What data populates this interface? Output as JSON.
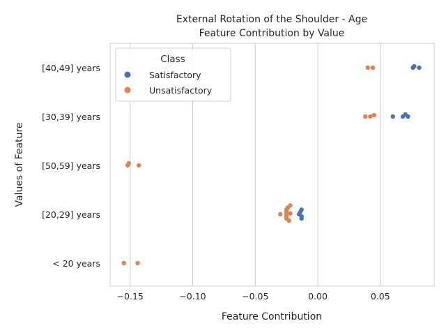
{
  "chart_data": {
    "type": "scatter",
    "title": "External Rotation of the Shoulder - Age",
    "subtitle": "Feature Contribution by Value",
    "xlabel": "Feature Contribution",
    "ylabel": "Values of Feature",
    "xlim": [
      -0.166,
      0.093
    ],
    "xticks": [
      -0.15,
      -0.1,
      -0.05,
      0.0,
      0.05
    ],
    "xtick_labels": [
      "−0.15",
      "−0.10",
      "−0.05",
      "0.00",
      "0.05"
    ],
    "categories": [
      "[40,49] years",
      "[30,39] years",
      "[50,59] years",
      "[20,29] years",
      "< 20 years"
    ],
    "grid": "vertical",
    "legend": {
      "title": "Class",
      "placement": "top-left",
      "entries": [
        {
          "name": "Satisfactory",
          "color": "#4c72b0"
        },
        {
          "name": "Unsatisfactory",
          "color": "#dd8452"
        }
      ]
    },
    "series": [
      {
        "name": "Satisfactory",
        "color": "#4c72b0",
        "points": [
          {
            "category": "[40,49] years",
            "x": 0.077,
            "jitter": -0.06
          },
          {
            "category": "[40,49] years",
            "x": 0.076,
            "jitter": 0.0
          },
          {
            "category": "[40,49] years",
            "x": 0.081,
            "jitter": 0.0
          },
          {
            "category": "[30,39] years",
            "x": 0.07,
            "jitter": -0.09
          },
          {
            "category": "[30,39] years",
            "x": 0.06,
            "jitter": 0.0
          },
          {
            "category": "[30,39] years",
            "x": 0.068,
            "jitter": 0.0
          },
          {
            "category": "[30,39] years",
            "x": 0.072,
            "jitter": 0.0
          },
          {
            "category": "[20,29] years",
            "x": -0.013,
            "jitter": -0.19
          },
          {
            "category": "[20,29] years",
            "x": -0.014,
            "jitter": -0.1
          },
          {
            "category": "[20,29] years",
            "x": -0.015,
            "jitter": 0.0
          },
          {
            "category": "[20,29] years",
            "x": -0.013,
            "jitter": 0.09
          },
          {
            "category": "[20,29] years",
            "x": -0.013,
            "jitter": 0.18
          }
        ]
      },
      {
        "name": "Unsatisfactory",
        "color": "#dd8452",
        "points": [
          {
            "category": "[40,49] years",
            "x": 0.04,
            "jitter": 0.0
          },
          {
            "category": "[40,49] years",
            "x": 0.044,
            "jitter": 0.0
          },
          {
            "category": "[30,39] years",
            "x": 0.045,
            "jitter": -0.06
          },
          {
            "category": "[30,39] years",
            "x": 0.038,
            "jitter": 0.0
          },
          {
            "category": "[30,39] years",
            "x": 0.042,
            "jitter": 0.0
          },
          {
            "category": "[50,59] years",
            "x": -0.151,
            "jitter": -0.09
          },
          {
            "category": "[50,59] years",
            "x": -0.152,
            "jitter": 0.0
          },
          {
            "category": "[50,59] years",
            "x": -0.143,
            "jitter": 0.0
          },
          {
            "category": "[20,29] years",
            "x": -0.022,
            "jitter": -0.37
          },
          {
            "category": "[20,29] years",
            "x": -0.024,
            "jitter": -0.28
          },
          {
            "category": "[20,29] years",
            "x": -0.025,
            "jitter": -0.19
          },
          {
            "category": "[20,29] years",
            "x": -0.025,
            "jitter": -0.1
          },
          {
            "category": "[20,29] years",
            "x": -0.022,
            "jitter": -0.03
          },
          {
            "category": "[20,29] years",
            "x": -0.03,
            "jitter": 0.0
          },
          {
            "category": "[20,29] years",
            "x": -0.025,
            "jitter": 0.0
          },
          {
            "category": "[20,29] years",
            "x": -0.025,
            "jitter": 0.09
          },
          {
            "category": "[20,29] years",
            "x": -0.025,
            "jitter": 0.18
          },
          {
            "category": "[20,29] years",
            "x": -0.023,
            "jitter": 0.27
          }
        ]
      },
      {
        "name": "Unsatisfactory",
        "color": "#dd8452",
        "points": [
          {
            "category": "< 20 years",
            "x": -0.155,
            "jitter": 0.0
          },
          {
            "category": "< 20 years",
            "x": -0.144,
            "jitter": 0.0
          }
        ]
      }
    ]
  }
}
